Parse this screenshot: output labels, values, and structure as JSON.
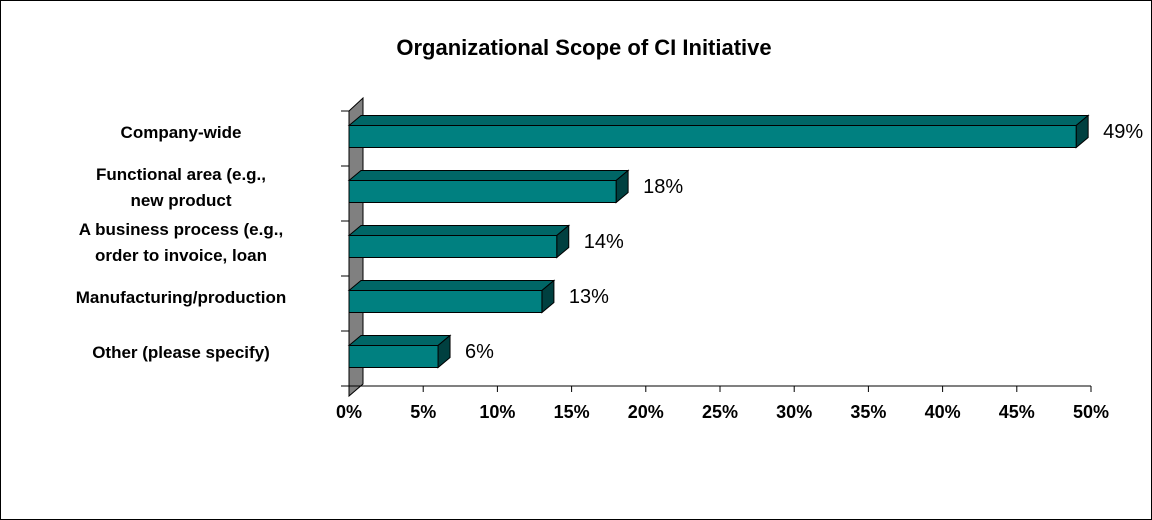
{
  "chart_data": {
    "type": "bar",
    "orientation": "horizontal",
    "title": "Organizational Scope of CI Initiative",
    "categories": [
      "Company-wide",
      "Functional area (e.g.,\nnew product",
      "A business process (e.g.,\norder to invoice, loan",
      "Manufacturing/production",
      "Other (please specify)"
    ],
    "values": [
      49,
      18,
      14,
      13,
      6
    ],
    "value_labels": [
      "49%",
      "18%",
      "14%",
      "13%",
      "6%"
    ],
    "color": "#008080",
    "xlim": [
      0,
      50
    ],
    "xticks": [
      {
        "value": 0,
        "label": "0%"
      },
      {
        "value": 5,
        "label": "5%"
      },
      {
        "value": 10,
        "label": "10%"
      },
      {
        "value": 15,
        "label": "15%"
      },
      {
        "value": 20,
        "label": "20%"
      },
      {
        "value": 25,
        "label": "25%"
      },
      {
        "value": 30,
        "label": "30%"
      },
      {
        "value": 35,
        "label": "35%"
      },
      {
        "value": 40,
        "label": "40%"
      },
      {
        "value": 45,
        "label": "45%"
      },
      {
        "value": 50,
        "label": "50%"
      }
    ]
  }
}
